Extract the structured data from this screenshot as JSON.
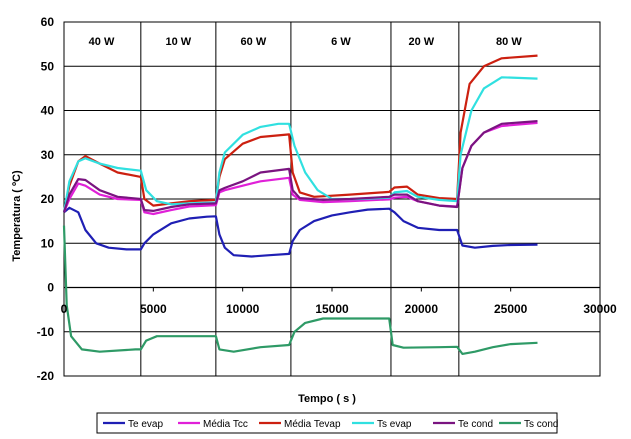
{
  "chart_data": {
    "type": "line",
    "title": "",
    "xlabel": "Tempo ( s )",
    "ylabel": "Temperatura ( ºC)",
    "xlim": [
      0,
      30000
    ],
    "ylim": [
      -20,
      60
    ],
    "xticks": [
      0,
      5000,
      10000,
      15000,
      20000,
      25000,
      30000
    ],
    "yticks": [
      -20,
      -10,
      0,
      10,
      20,
      30,
      40,
      50,
      60
    ],
    "grid": true,
    "legend_position": "bottom",
    "annotations": [
      {
        "label": "40 W",
        "x": 2100
      },
      {
        "label": "10 W",
        "x": 6400
      },
      {
        "label": "60 W",
        "x": 10600
      },
      {
        "label": "6 W",
        "x": 15500
      },
      {
        "label": "20 W",
        "x": 20000
      },
      {
        "label": "80 W",
        "x": 24900
      }
    ],
    "phase_boundaries": [
      4300,
      8500,
      12700,
      18300,
      22100
    ],
    "series": [
      {
        "name": "Te evap",
        "color": "#1f1fb4",
        "points": [
          [
            0,
            17
          ],
          [
            300,
            18
          ],
          [
            800,
            17
          ],
          [
            1200,
            13
          ],
          [
            1800,
            10
          ],
          [
            2500,
            9
          ],
          [
            3500,
            8.6
          ],
          [
            4300,
            8.6
          ],
          [
            4500,
            10
          ],
          [
            5000,
            12
          ],
          [
            6000,
            14.5
          ],
          [
            7000,
            15.6
          ],
          [
            8000,
            16
          ],
          [
            8500,
            16.1
          ],
          [
            8700,
            12
          ],
          [
            9000,
            9
          ],
          [
            9500,
            7.3
          ],
          [
            10500,
            7
          ],
          [
            11500,
            7.3
          ],
          [
            12600,
            7.6
          ],
          [
            12800,
            10.5
          ],
          [
            13200,
            13
          ],
          [
            14000,
            15
          ],
          [
            15000,
            16.3
          ],
          [
            16000,
            17
          ],
          [
            17000,
            17.6
          ],
          [
            18200,
            17.8
          ],
          [
            18500,
            17
          ],
          [
            19000,
            15
          ],
          [
            19800,
            13.5
          ],
          [
            21000,
            13
          ],
          [
            22000,
            13
          ],
          [
            22300,
            9.5
          ],
          [
            23000,
            9
          ],
          [
            24000,
            9.4
          ],
          [
            25000,
            9.6
          ],
          [
            26500,
            9.7
          ]
        ]
      },
      {
        "name": "Média Tcc",
        "color": "#e020d8",
        "points": [
          [
            0,
            17
          ],
          [
            300,
            20
          ],
          [
            800,
            23.5
          ],
          [
            1200,
            23
          ],
          [
            2000,
            21
          ],
          [
            3000,
            20
          ],
          [
            4300,
            19.8
          ],
          [
            4500,
            17
          ],
          [
            5000,
            16.6
          ],
          [
            6000,
            17.5
          ],
          [
            7000,
            18.3
          ],
          [
            8500,
            18.6
          ],
          [
            8700,
            21.5
          ],
          [
            9000,
            22
          ],
          [
            10000,
            23
          ],
          [
            11000,
            24
          ],
          [
            12600,
            24.8
          ],
          [
            12800,
            21
          ],
          [
            13200,
            19.8
          ],
          [
            14500,
            19.3
          ],
          [
            16000,
            19.5
          ],
          [
            17500,
            19.8
          ],
          [
            18200,
            19.9
          ],
          [
            18500,
            20.3
          ],
          [
            19200,
            20.5
          ],
          [
            19800,
            19.5
          ],
          [
            21000,
            18.5
          ],
          [
            22000,
            18.3
          ],
          [
            22300,
            27
          ],
          [
            22800,
            32
          ],
          [
            23500,
            35
          ],
          [
            24500,
            36.5
          ],
          [
            26500,
            37.2
          ]
        ]
      },
      {
        "name": "Média Tevap",
        "color": "#cc2010",
        "points": [
          [
            0,
            17
          ],
          [
            300,
            23
          ],
          [
            800,
            28.5
          ],
          [
            1200,
            29.7
          ],
          [
            2000,
            28
          ],
          [
            3000,
            26
          ],
          [
            4300,
            25
          ],
          [
            4500,
            20
          ],
          [
            5000,
            18.5
          ],
          [
            6000,
            19
          ],
          [
            7000,
            19.5
          ],
          [
            8500,
            19.8
          ],
          [
            8700,
            25
          ],
          [
            9000,
            29
          ],
          [
            10000,
            32.5
          ],
          [
            11000,
            34
          ],
          [
            12600,
            34.6
          ],
          [
            12800,
            26
          ],
          [
            13200,
            21.5
          ],
          [
            14000,
            20.5
          ],
          [
            16000,
            21
          ],
          [
            18200,
            21.6
          ],
          [
            18500,
            22.6
          ],
          [
            19200,
            22.8
          ],
          [
            19800,
            21
          ],
          [
            21000,
            20.2
          ],
          [
            22000,
            20
          ],
          [
            22200,
            35
          ],
          [
            22700,
            46
          ],
          [
            23500,
            50
          ],
          [
            24500,
            51.8
          ],
          [
            26500,
            52.4
          ]
        ]
      },
      {
        "name": "Ts evap",
        "color": "#30e0e0",
        "points": [
          [
            0,
            17
          ],
          [
            300,
            24
          ],
          [
            800,
            28.5
          ],
          [
            1200,
            29.2
          ],
          [
            2000,
            28
          ],
          [
            3000,
            27
          ],
          [
            4300,
            26.4
          ],
          [
            4600,
            22
          ],
          [
            5200,
            19.5
          ],
          [
            6000,
            18.8
          ],
          [
            7000,
            19
          ],
          [
            8500,
            19.2
          ],
          [
            8700,
            26
          ],
          [
            9000,
            30.5
          ],
          [
            10000,
            34.5
          ],
          [
            11000,
            36.3
          ],
          [
            12000,
            37
          ],
          [
            12600,
            37
          ],
          [
            12900,
            32
          ],
          [
            13500,
            26
          ],
          [
            14200,
            22
          ],
          [
            15000,
            20
          ],
          [
            16500,
            20
          ],
          [
            18200,
            20.3
          ],
          [
            18500,
            21.5
          ],
          [
            19200,
            21.8
          ],
          [
            19800,
            20.5
          ],
          [
            21000,
            19.8
          ],
          [
            22000,
            19.5
          ],
          [
            22200,
            30
          ],
          [
            22800,
            40
          ],
          [
            23500,
            45
          ],
          [
            24500,
            47.5
          ],
          [
            26500,
            47.2
          ]
        ]
      },
      {
        "name": "Te cond",
        "color": "#7a1480",
        "points": [
          [
            0,
            17
          ],
          [
            300,
            21
          ],
          [
            800,
            24.5
          ],
          [
            1200,
            24.3
          ],
          [
            2000,
            22
          ],
          [
            3000,
            20.5
          ],
          [
            4300,
            20
          ],
          [
            4500,
            17.5
          ],
          [
            5000,
            17.3
          ],
          [
            6000,
            18.2
          ],
          [
            7000,
            18.8
          ],
          [
            8500,
            19
          ],
          [
            8700,
            22
          ],
          [
            9000,
            22.5
          ],
          [
            10000,
            24
          ],
          [
            11000,
            26
          ],
          [
            12600,
            26.8
          ],
          [
            12800,
            22
          ],
          [
            13200,
            20.2
          ],
          [
            14500,
            19.8
          ],
          [
            16000,
            20
          ],
          [
            18200,
            20.5
          ],
          [
            18500,
            21
          ],
          [
            19200,
            21
          ],
          [
            19800,
            19.5
          ],
          [
            21000,
            18.5
          ],
          [
            22000,
            18.2
          ],
          [
            22300,
            27
          ],
          [
            22800,
            32
          ],
          [
            23500,
            35
          ],
          [
            24500,
            37
          ],
          [
            26500,
            37.6
          ]
        ]
      },
      {
        "name": "Ts cond",
        "color": "#2e9a66",
        "points": [
          [
            0,
            14
          ],
          [
            150,
            -4
          ],
          [
            400,
            -11
          ],
          [
            1000,
            -14
          ],
          [
            2000,
            -14.5
          ],
          [
            4000,
            -14
          ],
          [
            4300,
            -14
          ],
          [
            4600,
            -12
          ],
          [
            5200,
            -11
          ],
          [
            6500,
            -11
          ],
          [
            8500,
            -11
          ],
          [
            8700,
            -14
          ],
          [
            9500,
            -14.5
          ],
          [
            11000,
            -13.5
          ],
          [
            12600,
            -13
          ],
          [
            12900,
            -10
          ],
          [
            13500,
            -8
          ],
          [
            14500,
            -7
          ],
          [
            16000,
            -7
          ],
          [
            18200,
            -7
          ],
          [
            18400,
            -13
          ],
          [
            19000,
            -13.6
          ],
          [
            21000,
            -13.5
          ],
          [
            22000,
            -13.4
          ],
          [
            22300,
            -15
          ],
          [
            23000,
            -14.5
          ],
          [
            24000,
            -13.5
          ],
          [
            25000,
            -12.8
          ],
          [
            26500,
            -12.5
          ]
        ]
      }
    ]
  }
}
